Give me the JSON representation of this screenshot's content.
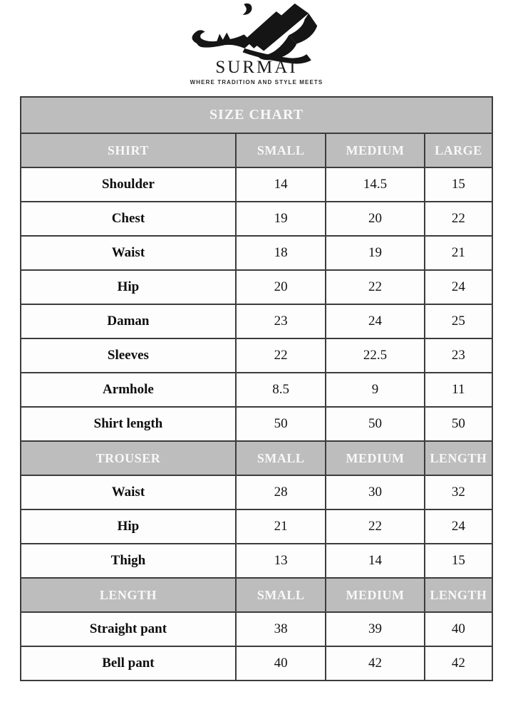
{
  "logo": {
    "brand": "SURMAI",
    "tagline": "WHERE TRADITION AND STYLE MEETS",
    "calligraphy_icon": "surmai-urdu-calligraphy"
  },
  "colors": {
    "header_bg": "#bdbdbd",
    "header_text": "#f8f8f8",
    "border": "#3c3c3c",
    "cell_bg": "#fdfdfd"
  },
  "chart_data": {
    "type": "table",
    "title": "SIZE CHART",
    "column_widths_pct": [
      45.6,
      19.1,
      20.9,
      14.4
    ],
    "sections": [
      {
        "header": [
          "SHIRT",
          "SMALL",
          "MEDIUM",
          "LARGE"
        ],
        "rows": [
          {
            "label": "Shoulder",
            "values": [
              "14",
              "14.5",
              "15"
            ]
          },
          {
            "label": "Chest",
            "values": [
              "19",
              "20",
              "22"
            ]
          },
          {
            "label": "Waist",
            "values": [
              "18",
              "19",
              "21"
            ]
          },
          {
            "label": "Hip",
            "values": [
              "20",
              "22",
              "24"
            ]
          },
          {
            "label": "Daman",
            "values": [
              "23",
              "24",
              "25"
            ]
          },
          {
            "label": "Sleeves",
            "values": [
              "22",
              "22.5",
              "23"
            ]
          },
          {
            "label": "Armhole",
            "values": [
              "8.5",
              "9",
              "11"
            ]
          },
          {
            "label": "Shirt length",
            "values": [
              "50",
              "50",
              "50"
            ]
          }
        ]
      },
      {
        "header": [
          "TROUSER",
          "SMALL",
          "MEDIUM",
          "LENGTH"
        ],
        "rows": [
          {
            "label": "Waist",
            "values": [
              "28",
              "30",
              "32"
            ]
          },
          {
            "label": "Hip",
            "values": [
              "21",
              "22",
              "24"
            ]
          },
          {
            "label": "Thigh",
            "values": [
              "13",
              "14",
              "15"
            ]
          }
        ]
      },
      {
        "header": [
          "LENGTH",
          "SMALL",
          "MEDIUM",
          "LENGTH"
        ],
        "rows": [
          {
            "label": "Straight pant",
            "values": [
              "38",
              "39",
              "40"
            ]
          },
          {
            "label": "Bell pant",
            "values": [
              "40",
              "42",
              "42"
            ]
          }
        ]
      }
    ]
  }
}
